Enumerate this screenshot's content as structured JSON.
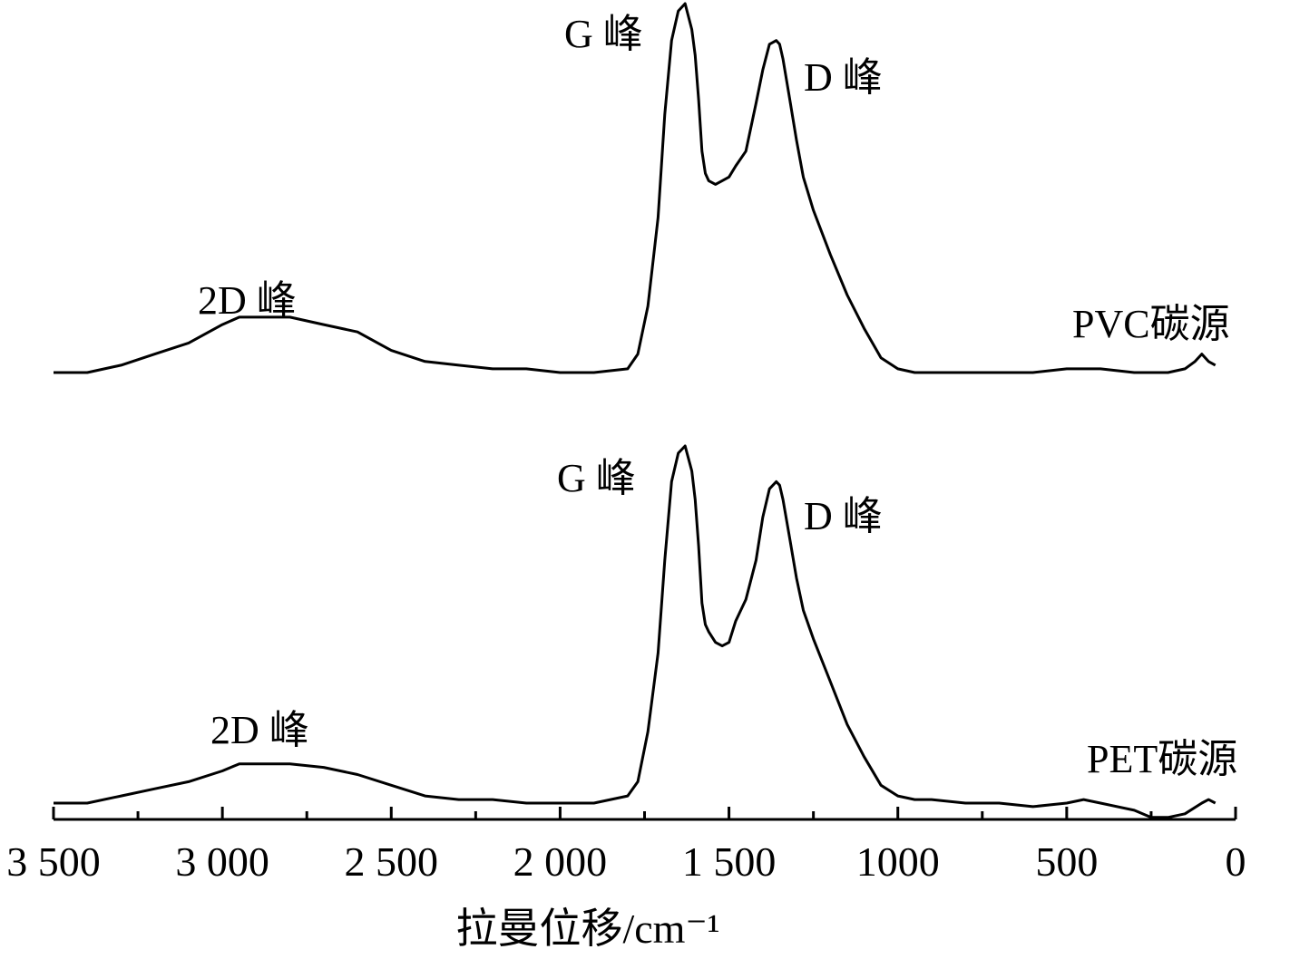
{
  "chart_data": {
    "type": "line",
    "title": "",
    "xlabel": "拉曼位移/cm⁻¹",
    "ylabel": "",
    "xlim": [
      3500,
      0
    ],
    "x_reversed": true,
    "grid": false,
    "x_major_ticks": [
      {
        "value": 3500,
        "label": "3 500"
      },
      {
        "value": 3000,
        "label": "3 000"
      },
      {
        "value": 2500,
        "label": "2 500"
      },
      {
        "value": 2000,
        "label": "2 000"
      },
      {
        "value": 1500,
        "label": "1 500"
      },
      {
        "value": 1000,
        "label": "1000"
      },
      {
        "value": 500,
        "label": "500"
      },
      {
        "value": 0,
        "label": "0"
      }
    ],
    "x_minor_ticks": [
      3250,
      2750,
      2250,
      1750,
      1250,
      750,
      250
    ],
    "series": [
      {
        "name": "PVC碳源",
        "x": [
          3500,
          3400,
          3300,
          3200,
          3100,
          3000,
          2950,
          2900,
          2850,
          2800,
          2700,
          2600,
          2500,
          2400,
          2300,
          2200,
          2100,
          2000,
          1900,
          1800,
          1770,
          1740,
          1710,
          1690,
          1670,
          1650,
          1630,
          1610,
          1600,
          1590,
          1580,
          1570,
          1560,
          1540,
          1520,
          1500,
          1480,
          1450,
          1420,
          1400,
          1380,
          1360,
          1350,
          1340,
          1320,
          1300,
          1280,
          1250,
          1200,
          1150,
          1100,
          1050,
          1000,
          950,
          900,
          800,
          700,
          600,
          500,
          400,
          300,
          200,
          150,
          120,
          100,
          80,
          60
        ],
        "y": [
          0.0,
          0.0,
          0.02,
          0.05,
          0.08,
          0.13,
          0.15,
          0.15,
          0.15,
          0.15,
          0.13,
          0.11,
          0.06,
          0.03,
          0.02,
          0.01,
          0.01,
          0.0,
          0.0,
          0.01,
          0.05,
          0.18,
          0.42,
          0.7,
          0.9,
          0.98,
          1.0,
          0.93,
          0.86,
          0.74,
          0.6,
          0.54,
          0.52,
          0.51,
          0.52,
          0.53,
          0.56,
          0.6,
          0.73,
          0.82,
          0.89,
          0.9,
          0.89,
          0.85,
          0.74,
          0.63,
          0.53,
          0.44,
          0.32,
          0.21,
          0.12,
          0.04,
          0.01,
          0.0,
          0.0,
          0.0,
          0.0,
          0.0,
          0.01,
          0.01,
          0.0,
          0.0,
          0.01,
          0.03,
          0.05,
          0.03,
          0.02
        ]
      },
      {
        "name": "PET碳源",
        "x": [
          3500,
          3400,
          3300,
          3200,
          3100,
          3000,
          2950,
          2900,
          2850,
          2800,
          2700,
          2600,
          2500,
          2400,
          2300,
          2200,
          2100,
          2000,
          1900,
          1800,
          1770,
          1740,
          1710,
          1690,
          1670,
          1650,
          1630,
          1610,
          1600,
          1590,
          1580,
          1570,
          1560,
          1540,
          1520,
          1500,
          1480,
          1450,
          1420,
          1400,
          1380,
          1360,
          1350,
          1340,
          1320,
          1300,
          1280,
          1250,
          1200,
          1150,
          1100,
          1050,
          1000,
          950,
          900,
          800,
          700,
          600,
          500,
          450,
          400,
          300,
          250,
          200,
          150,
          100,
          80,
          60
        ],
        "y": [
          0.0,
          0.0,
          0.02,
          0.04,
          0.06,
          0.09,
          0.11,
          0.11,
          0.11,
          0.11,
          0.1,
          0.08,
          0.05,
          0.02,
          0.01,
          0.01,
          0.0,
          0.0,
          0.0,
          0.02,
          0.06,
          0.2,
          0.42,
          0.68,
          0.9,
          0.98,
          1.0,
          0.93,
          0.85,
          0.72,
          0.56,
          0.5,
          0.48,
          0.45,
          0.44,
          0.45,
          0.51,
          0.57,
          0.68,
          0.8,
          0.88,
          0.9,
          0.89,
          0.85,
          0.74,
          0.63,
          0.54,
          0.46,
          0.34,
          0.22,
          0.13,
          0.05,
          0.02,
          0.01,
          0.01,
          0.0,
          0.0,
          -0.01,
          0.0,
          0.01,
          0.0,
          -0.02,
          -0.04,
          -0.04,
          -0.03,
          0.0,
          0.01,
          0.0
        ]
      }
    ],
    "annotations": [
      {
        "series": "PVC碳源",
        "text": "G 峰",
        "x": 1610
      },
      {
        "series": "PVC碳源",
        "text": "D 峰",
        "x": 1360
      },
      {
        "series": "PVC碳源",
        "text": "2D 峰",
        "x": 2850
      },
      {
        "series": "PET碳源",
        "text": "G 峰",
        "x": 1610
      },
      {
        "series": "PET碳源",
        "text": "D 峰",
        "x": 1360
      },
      {
        "series": "PET碳源",
        "text": "2D 峰",
        "x": 2850
      }
    ]
  }
}
